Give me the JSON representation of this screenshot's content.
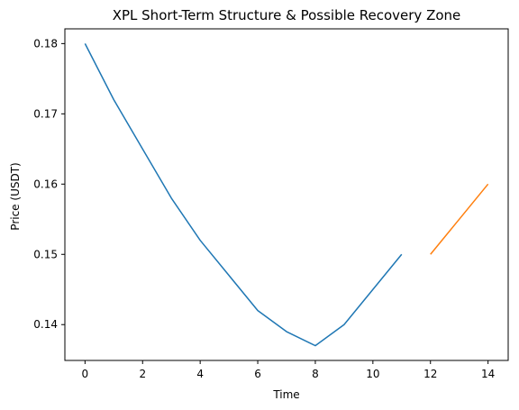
{
  "chart_data": {
    "type": "line",
    "title": "XPL Short-Term Structure & Possible Recovery Zone",
    "xlabel": "Time",
    "ylabel": "Price (USDT)",
    "xlim": [
      -0.7,
      14.7
    ],
    "ylim": [
      0.1349,
      0.1821
    ],
    "x_ticks": [
      0,
      2,
      4,
      6,
      8,
      10,
      12,
      14
    ],
    "y_ticks": [
      0.14,
      0.15,
      0.16,
      0.17,
      0.18
    ],
    "grid": false,
    "series": [
      {
        "color": "#1f77b4",
        "x": [
          0,
          1,
          2,
          3,
          4,
          5,
          6,
          7,
          8,
          9,
          10,
          11
        ],
        "y": [
          0.18,
          0.172,
          0.165,
          0.158,
          0.152,
          0.147,
          0.142,
          0.139,
          0.137,
          0.14,
          0.145,
          0.15
        ]
      },
      {
        "color": "#ff7f0e",
        "x": [
          12,
          13,
          14
        ],
        "y": [
          0.15,
          0.155,
          0.16
        ]
      }
    ]
  }
}
